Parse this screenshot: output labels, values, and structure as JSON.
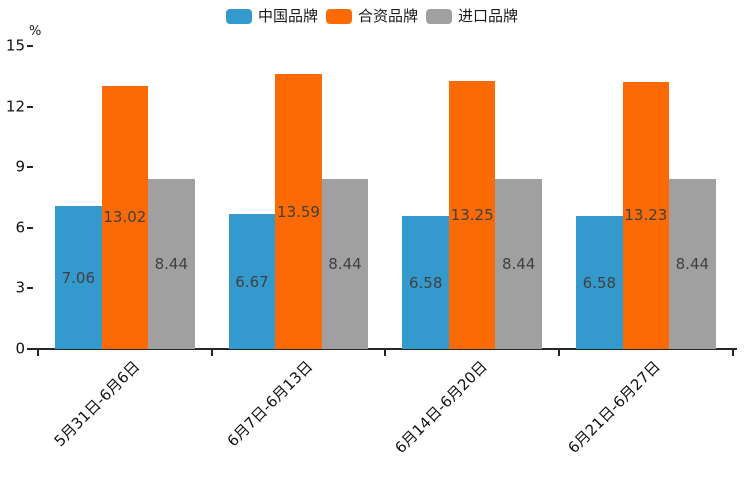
{
  "chart": {
    "unit_label": "%",
    "background": "#ffffff",
    "axis_color": "#262626",
    "tick_label_color": "#111111",
    "value_label_color": "#404040"
  },
  "chart_data": {
    "type": "bar",
    "title": "",
    "categories": [
      "5月31日-6月6日",
      "6月7日-6月13日",
      "6月14日-6月20日",
      "6月21日-6月27日"
    ],
    "series": [
      {
        "name": "中国品牌",
        "color": "#3499CC",
        "values": [
          7.06,
          6.67,
          6.58,
          6.58
        ]
      },
      {
        "name": "合资品牌",
        "color": "#FB6A05",
        "values": [
          13.02,
          13.59,
          13.25,
          13.23
        ]
      },
      {
        "name": "进口品牌",
        "color": "#A0A0A0",
        "values": [
          8.44,
          8.44,
          8.44,
          8.44
        ]
      }
    ],
    "ylabel": "%",
    "xlabel": "",
    "ylim": [
      0,
      15
    ],
    "yticks": [
      0,
      3,
      6,
      9,
      12,
      15
    ],
    "grid": false,
    "legend_position": "top-center",
    "bar_label_position": "inside-center",
    "bar_label_format": "0.00",
    "x_tick_label_rotation_deg": 45
  }
}
